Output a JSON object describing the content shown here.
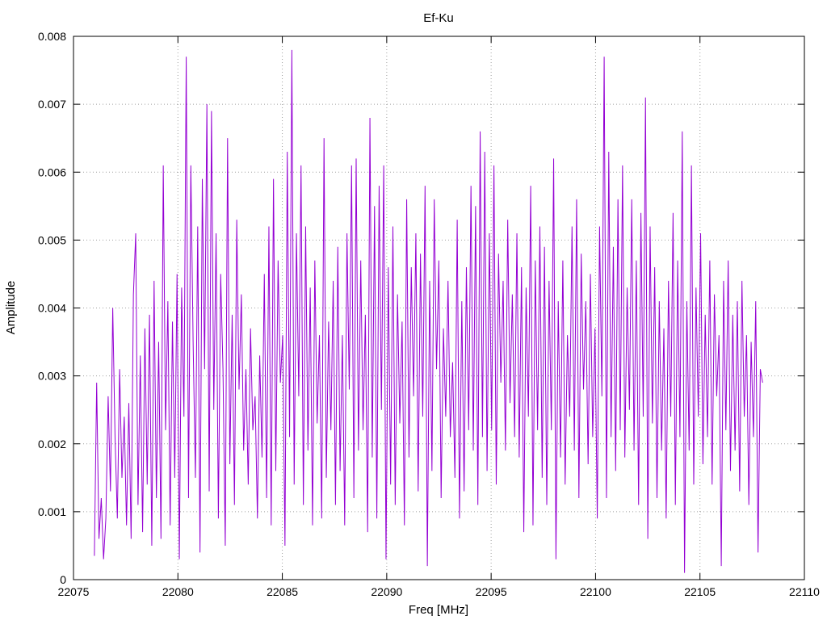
{
  "chart_data": {
    "type": "line",
    "title": "Ef-Ku",
    "xlabel": "Freq [MHz]",
    "ylabel": "Amplitude",
    "xlim": [
      22075,
      22110
    ],
    "ylim": [
      0,
      0.008
    ],
    "x_ticks": [
      "22075",
      "22080",
      "22085",
      "22090",
      "22095",
      "22100",
      "22105",
      "22110"
    ],
    "y_ticks": [
      "0",
      "0.001",
      "0.002",
      "0.003",
      "0.004",
      "0.005",
      "0.006",
      "0.007",
      "0.008"
    ],
    "grid": true,
    "series_color": "#9400d3",
    "series": [
      {
        "x_start": 22076.0,
        "x_end": 22108.0,
        "values": [
          0.00035,
          0.0029,
          0.0006,
          0.0012,
          0.0003,
          0.0009,
          0.0027,
          0.0013,
          0.004,
          0.0021,
          0.0009,
          0.0031,
          0.0015,
          0.0024,
          0.0008,
          0.0026,
          0.0006,
          0.0042,
          0.0051,
          0.0011,
          0.0033,
          0.0007,
          0.0037,
          0.0014,
          0.0039,
          0.0005,
          0.0044,
          0.0012,
          0.0035,
          0.0006,
          0.0061,
          0.0022,
          0.0041,
          0.0008,
          0.0038,
          0.0015,
          0.0045,
          0.0003,
          0.0043,
          0.0024,
          0.0077,
          0.0012,
          0.0061,
          0.0035,
          0.0015,
          0.0052,
          0.0004,
          0.0059,
          0.0031,
          0.007,
          0.0013,
          0.0069,
          0.0025,
          0.0051,
          0.0009,
          0.0045,
          0.0031,
          0.0005,
          0.0065,
          0.0017,
          0.0039,
          0.0011,
          0.0053,
          0.0028,
          0.0042,
          0.0019,
          0.0031,
          0.0014,
          0.0037,
          0.0022,
          0.0027,
          0.0009,
          0.0033,
          0.0018,
          0.0045,
          0.0012,
          0.0052,
          0.0008,
          0.0059,
          0.0016,
          0.0047,
          0.0029,
          0.0036,
          0.0005,
          0.0063,
          0.0021,
          0.0078,
          0.0014,
          0.0051,
          0.0027,
          0.0061,
          0.0011,
          0.0052,
          0.0019,
          0.0043,
          0.0008,
          0.0047,
          0.0023,
          0.0036,
          0.0009,
          0.0065,
          0.0015,
          0.0038,
          0.0022,
          0.0044,
          0.0011,
          0.0049,
          0.0016,
          0.0036,
          0.0008,
          0.0051,
          0.0028,
          0.0061,
          0.0012,
          0.0062,
          0.0019,
          0.0047,
          0.0022,
          0.0039,
          0.0007,
          0.0068,
          0.0018,
          0.0055,
          0.0009,
          0.0058,
          0.0025,
          0.0061,
          0.0003,
          0.0046,
          0.0014,
          0.0052,
          0.0011,
          0.0042,
          0.0023,
          0.0038,
          0.0008,
          0.0056,
          0.0018,
          0.0046,
          0.0027,
          0.0051,
          0.0013,
          0.0048,
          0.0024,
          0.0058,
          0.0002,
          0.0044,
          0.0016,
          0.0056,
          0.0031,
          0.0047,
          0.0012,
          0.0037,
          0.0024,
          0.0044,
          0.0021,
          0.0032,
          0.0015,
          0.0053,
          0.0009,
          0.0041,
          0.0013,
          0.0046,
          0.0022,
          0.0058,
          0.0019,
          0.0055,
          0.0011,
          0.0066,
          0.0021,
          0.0063,
          0.0016,
          0.0051,
          0.0022,
          0.0061,
          0.0014,
          0.0048,
          0.0029,
          0.0044,
          0.0019,
          0.0053,
          0.0026,
          0.0042,
          0.0021,
          0.0051,
          0.0018,
          0.0046,
          0.0007,
          0.0043,
          0.0024,
          0.0058,
          0.0008,
          0.0047,
          0.0022,
          0.0052,
          0.0015,
          0.0049,
          0.0011,
          0.0044,
          0.0022,
          0.0062,
          0.0003,
          0.0041,
          0.0018,
          0.0047,
          0.0014,
          0.0036,
          0.0024,
          0.0052,
          0.0019,
          0.0056,
          0.0012,
          0.0048,
          0.0028,
          0.0041,
          0.0017,
          0.0045,
          0.0021,
          0.0037,
          0.0009,
          0.0052,
          0.0027,
          0.0077,
          0.0012,
          0.0063,
          0.0021,
          0.0049,
          0.0016,
          0.0056,
          0.0022,
          0.0061,
          0.0018,
          0.0043,
          0.0025,
          0.0056,
          0.0019,
          0.0047,
          0.0011,
          0.0054,
          0.0024,
          0.0071,
          0.0006,
          0.0052,
          0.0023,
          0.0046,
          0.0012,
          0.0041,
          0.0019,
          0.0037,
          0.0009,
          0.0044,
          0.0024,
          0.0054,
          0.0011,
          0.0047,
          0.0021,
          0.0066,
          0.0001,
          0.0041,
          0.0019,
          0.0061,
          0.0014,
          0.0043,
          0.0024,
          0.0051,
          0.0017,
          0.0039,
          0.0021,
          0.0047,
          0.0014,
          0.0042,
          0.0027,
          0.0036,
          0.0002,
          0.0044,
          0.0022,
          0.0047,
          0.0016,
          0.0039,
          0.0019,
          0.0041,
          0.0013,
          0.0044,
          0.0024,
          0.0036,
          0.0011,
          0.0035,
          0.0021,
          0.0041,
          0.0004,
          0.0031,
          0.0029
        ]
      }
    ]
  }
}
